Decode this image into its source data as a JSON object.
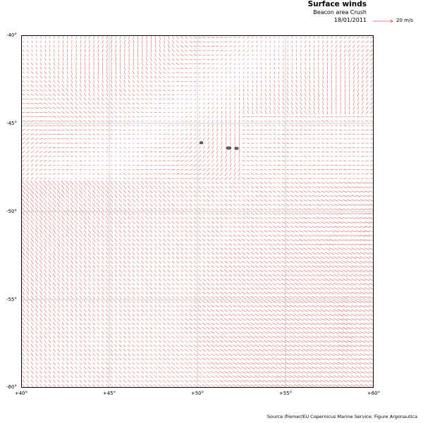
{
  "header": {
    "title": "Surface winds",
    "subtitle": "Beacon area Crush",
    "date": "18/01/2011"
  },
  "legend": {
    "label": "20 m/s",
    "arrow_color": "#e0534c"
  },
  "axes": {
    "lat_labels": [
      "-40°",
      "-45°",
      "-50°",
      "-55°",
      "-60°"
    ],
    "lon_labels": [
      "+40°",
      "+45°",
      "+50°",
      "+55°",
      "+60°"
    ],
    "lat_range": [
      -60,
      -40
    ],
    "lon_range": [
      40,
      60
    ]
  },
  "colors": {
    "arrows": "#e0534c",
    "grid": "#555555",
    "frame": "#000000",
    "islands": "#000000"
  },
  "field": {
    "type": "wind-vector-field",
    "grid_step_deg": 0.25,
    "islands_visible": true
  },
  "footer": {
    "source": "Source Ifremer/EU Copernicus Marine Service. Figure Argonautica"
  }
}
